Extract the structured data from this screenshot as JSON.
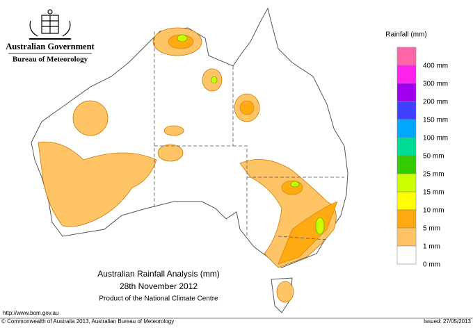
{
  "header": {
    "government": "Australian Government",
    "agency": "Bureau of Meteorology"
  },
  "title": {
    "main": "Australian Rainfall Analysis (mm)",
    "date": "28th November 2012",
    "product": "Product of the National Climate Centre"
  },
  "legend": {
    "title": "Rainfall (mm)",
    "colors": [
      "#ff66aa",
      "#ff22ee",
      "#a000ee",
      "#4040ff",
      "#00a8ff",
      "#00dd99",
      "#33cc00",
      "#ccff00",
      "#ffff00",
      "#ffaa11",
      "#ffc466",
      "#ffffff"
    ],
    "labels": [
      "400 mm",
      "300 mm",
      "200 mm",
      "150 mm",
      "100 mm",
      "50 mm",
      "25 mm",
      "15 mm",
      "10 mm",
      "5 mm",
      "1 mm",
      "0 mm"
    ]
  },
  "footer": {
    "url": "http://www.bom.gov.au",
    "copyright": "© Commonwealth of Australia 2013, Australian Bureau of Meteorology",
    "issued": "Issued: 27/05/2013"
  }
}
